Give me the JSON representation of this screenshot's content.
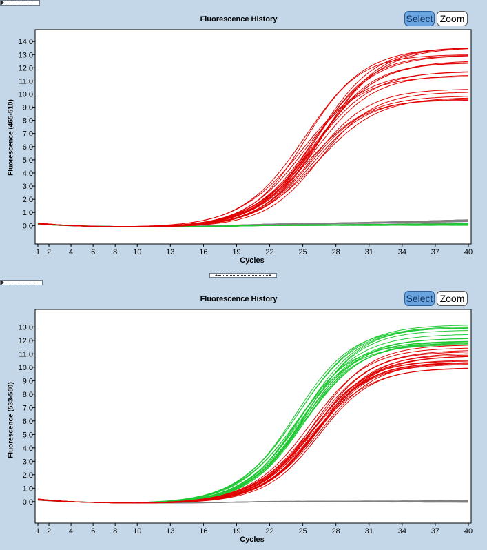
{
  "panels": [
    {
      "title": "Fluorescence History",
      "select_label": "Select",
      "zoom_label": "Zoom"
    },
    {
      "title": "Fluorescence History",
      "select_label": "Select",
      "zoom_label": "Zoom"
    }
  ],
  "colors": {
    "red": "#e00000",
    "green": "#1ec832",
    "gray": "#808080"
  },
  "chart_data": [
    {
      "type": "line",
      "title": "Fluorescence History",
      "xlabel": "Cycles",
      "ylabel": "Fluorescence (465-510)",
      "xlim": [
        1,
        40
      ],
      "ylim": [
        -1.4,
        14.9
      ],
      "xticks": [
        1,
        2,
        4,
        6,
        8,
        10,
        13,
        16,
        19,
        22,
        25,
        28,
        31,
        34,
        37,
        40
      ],
      "yticks": [
        0.0,
        1.0,
        2.0,
        3.0,
        4.0,
        5.0,
        6.0,
        7.0,
        8.0,
        9.0,
        10.0,
        11.0,
        12.0,
        13.0,
        14.0
      ],
      "series_groups": [
        {
          "name": "positive samples (red)",
          "color": "red",
          "count": 20,
          "plateau_range": [
            9.4,
            13.9
          ],
          "midpoint_range": [
            24.8,
            26.8
          ],
          "steepness_range": [
            0.34,
            0.42
          ]
        },
        {
          "name": "baseline (gray)",
          "color": "gray",
          "count": 14,
          "end_value_range": [
            0.15,
            0.45
          ]
        },
        {
          "name": "baseline (green)",
          "color": "green",
          "count": 14,
          "end_value_range": [
            0.0,
            0.15
          ]
        }
      ]
    },
    {
      "type": "line",
      "title": "Fluorescence History",
      "xlabel": "Cycles",
      "ylabel": "Fluorescence (533-580)",
      "xlim": [
        1,
        40
      ],
      "ylim": [
        -1.6,
        14.3
      ],
      "xticks": [
        1,
        2,
        4,
        6,
        8,
        10,
        13,
        16,
        19,
        22,
        25,
        28,
        31,
        34,
        37,
        40
      ],
      "yticks": [
        0.0,
        1.0,
        2.0,
        3.0,
        4.0,
        5.0,
        6.0,
        7.0,
        8.0,
        9.0,
        10.0,
        11.0,
        12.0,
        13.0
      ],
      "series_groups": [
        {
          "name": "positive samples (green)",
          "color": "green",
          "count": 16,
          "plateau_range": [
            11.6,
            13.2
          ],
          "midpoint_range": [
            24.3,
            25.3
          ],
          "steepness_range": [
            0.36,
            0.42
          ]
        },
        {
          "name": "positive samples (red)",
          "color": "red",
          "count": 18,
          "plateau_range": [
            9.7,
            11.8
          ],
          "midpoint_range": [
            25.6,
            26.6
          ],
          "steepness_range": [
            0.36,
            0.42
          ]
        },
        {
          "name": "baseline (gray)",
          "color": "gray",
          "count": 14,
          "end_value_range": [
            -0.05,
            0.08
          ]
        }
      ]
    }
  ]
}
